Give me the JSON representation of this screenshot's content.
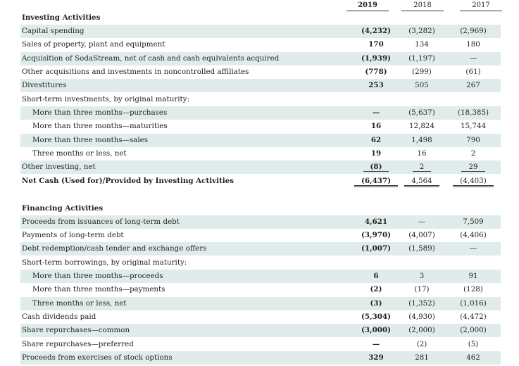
{
  "headers": [
    "2019",
    "2018",
    "2017"
  ],
  "investing": {
    "title": "Investing Activities",
    "rows": [
      {
        "label": "Capital spending",
        "v2019": "(4,232)",
        "v2018": "(3,282)",
        "v2017": "(2,969)"
      },
      {
        "label": "Sales of property, plant and equipment",
        "v2019": "170",
        "v2018": "134",
        "v2017": "180"
      },
      {
        "label": "Acquisition of SodaStream, net of cash and cash equivalents acquired",
        "v2019": "(1,939)",
        "v2018": "(1,197)",
        "v2017": "—"
      },
      {
        "label": "Other acquisitions and investments in noncontrolled affiliates",
        "v2019": "(778)",
        "v2018": "(299)",
        "v2017": "(61)"
      },
      {
        "label": "Divestitures",
        "v2019": "253",
        "v2018": "505",
        "v2017": "267"
      },
      {
        "label": "Short-term investments, by original maturity:",
        "v2019": "",
        "v2018": "",
        "v2017": ""
      },
      {
        "label": "More than three months—purchases",
        "v2019": "—",
        "v2018": "(5,637)",
        "v2017": "(18,385)"
      },
      {
        "label": "More than three months—maturities",
        "v2019": "16",
        "v2018": "12,824",
        "v2017": "15,744"
      },
      {
        "label": "More than three months—sales",
        "v2019": "62",
        "v2018": "1,498",
        "v2017": "790"
      },
      {
        "label": "Three months or less, net",
        "v2019": "19",
        "v2018": "16",
        "v2017": "2"
      },
      {
        "label": "Other investing, net",
        "v2019": "(8)",
        "v2018": "2",
        "v2017": "29"
      },
      {
        "label": "Net Cash (Used for)/Provided by Investing Activities",
        "v2019": "(6,437)",
        "v2018": "4,564",
        "v2017": "(4,403)"
      }
    ]
  },
  "financing": {
    "title": "Financing Activities",
    "rows": [
      {
        "label": "Proceeds from issuances of long-term debt",
        "v2019": "4,621",
        "v2018": "—",
        "v2017": "7,509"
      },
      {
        "label": "Payments of long-term debt",
        "v2019": "(3,970)",
        "v2018": "(4,007)",
        "v2017": "(4,406)"
      },
      {
        "label": "Debt redemption/cash tender and exchange offers",
        "v2019": "(1,007)",
        "v2018": "(1,589)",
        "v2017": "—"
      },
      {
        "label": "Short-term borrowings, by original maturity:",
        "v2019": "",
        "v2018": "",
        "v2017": ""
      },
      {
        "label": "More than three months—proceeds",
        "v2019": "6",
        "v2018": "3",
        "v2017": "91"
      },
      {
        "label": "More than three months—payments",
        "v2019": "(2)",
        "v2018": "(17)",
        "v2017": "(128)"
      },
      {
        "label": "Three months or less, net",
        "v2019": "(3)",
        "v2018": "(1,352)",
        "v2017": "(1,016)"
      },
      {
        "label": "Cash dividends paid",
        "v2019": "(5,304)",
        "v2018": "(4,930)",
        "v2017": "(4,472)"
      },
      {
        "label": "Share repurchases—common",
        "v2019": "(3,000)",
        "v2018": "(2,000)",
        "v2017": "(2,000)"
      },
      {
        "label": "Share repurchases—preferred",
        "v2019": "—",
        "v2018": "(2)",
        "v2017": "(5)"
      },
      {
        "label": "Proceeds from exercises of stock options",
        "v2019": "329",
        "v2018": "281",
        "v2017": "462"
      }
    ]
  }
}
